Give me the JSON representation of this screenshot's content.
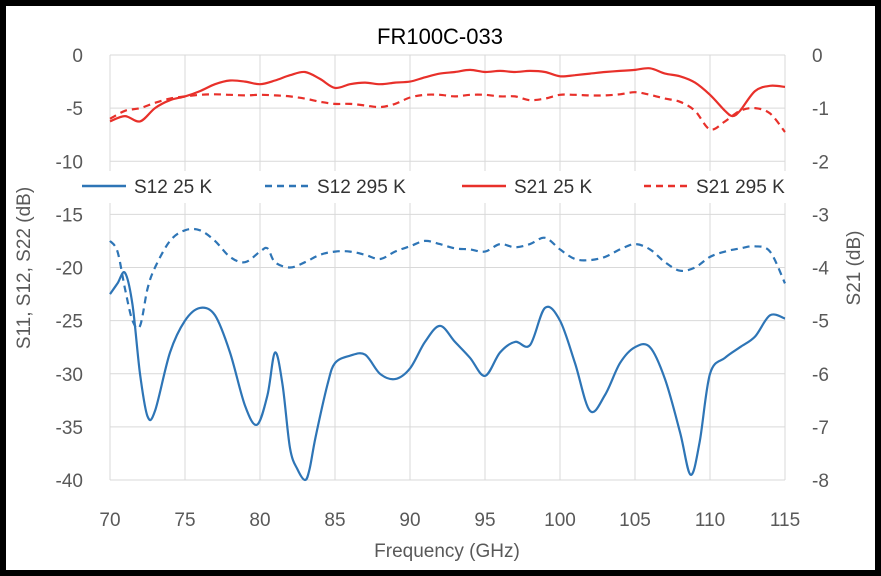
{
  "chart_data": {
    "type": "line",
    "title": "FR100C-033",
    "xlabel": "Frequency (GHz)",
    "ylabel_left": "S11, S12, S22 (dB)",
    "ylabel_right": "S21 (dB)",
    "xlim": [
      70,
      115
    ],
    "ylim_left": [
      -40,
      0
    ],
    "ylim_right": [
      -8,
      0
    ],
    "x_ticks": [
      "70",
      "75",
      "80",
      "85",
      "90",
      "95",
      "100",
      "105",
      "110",
      "115"
    ],
    "y_ticks_left": [
      "0",
      "-5",
      "-10",
      "-15",
      "-20",
      "-25",
      "-30",
      "-35",
      "-40"
    ],
    "y_ticks_right": [
      "0",
      "-1",
      "-2",
      "-3",
      "-4",
      "-5",
      "-6",
      "-7",
      "-8"
    ],
    "grid": true,
    "legend": "inside, upper-middle",
    "series": [
      {
        "name": "S12 25 K",
        "axis": "left",
        "color": "#2E75B6",
        "dash": "solid",
        "x": [
          70,
          70.5,
          71,
          71.5,
          72,
          72.5,
          73,
          74,
          75,
          76,
          77,
          78,
          79,
          79.8,
          80.5,
          81,
          81.5,
          82,
          82.5,
          83,
          83.3,
          83.7,
          84.5,
          85,
          86,
          87,
          88,
          89,
          90,
          91,
          92,
          93,
          94,
          95,
          96,
          97,
          98,
          99,
          100,
          101,
          102,
          103,
          104,
          105,
          106,
          107,
          108,
          108.7,
          109.3,
          110,
          111,
          112,
          113,
          114,
          115
        ],
        "y": [
          -22.5,
          -21.5,
          -20.5,
          -23.5,
          -30,
          -34,
          -33.5,
          -28,
          -25,
          -23.8,
          -24.5,
          -28,
          -33,
          -34.8,
          -32,
          -28,
          -31,
          -37,
          -39,
          -40,
          -39,
          -36,
          -31,
          -29,
          -28.3,
          -28.2,
          -30,
          -30.5,
          -29.5,
          -27,
          -25.5,
          -27,
          -28.5,
          -30.2,
          -28,
          -27,
          -27.3,
          -23.8,
          -25,
          -29,
          -33.5,
          -32,
          -29,
          -27.5,
          -27.5,
          -30.5,
          -35.5,
          -39.5,
          -36.5,
          -30,
          -28.5,
          -27.5,
          -26.5,
          -24.5,
          -24.8
        ]
      },
      {
        "name": "S12 295 K",
        "axis": "left",
        "color": "#2E75B6",
        "dash": "dashed",
        "x": [
          70,
          70.5,
          71,
          71.5,
          72,
          72.5,
          73,
          74,
          75,
          76,
          77,
          78,
          79,
          80,
          80.5,
          81,
          82,
          83,
          84,
          85,
          86,
          87,
          88,
          89,
          90,
          91,
          92,
          93,
          94,
          95,
          96,
          97,
          98,
          99,
          100,
          101,
          102,
          103,
          104,
          105,
          106,
          107,
          108,
          109,
          110,
          111,
          112,
          113,
          114,
          115
        ],
        "y": [
          -17.5,
          -18.5,
          -22,
          -25,
          -25.5,
          -22,
          -20,
          -17.5,
          -16.5,
          -16.5,
          -17.5,
          -19,
          -19.5,
          -18.5,
          -18.2,
          -19.5,
          -20,
          -19.5,
          -18.8,
          -18.5,
          -18.5,
          -18.8,
          -19.2,
          -18.5,
          -18,
          -17.5,
          -17.8,
          -18.2,
          -18.3,
          -18.5,
          -17.8,
          -18.1,
          -17.8,
          -17.2,
          -18.3,
          -19.2,
          -19.3,
          -19,
          -18.3,
          -17.8,
          -18.3,
          -19.5,
          -20.3,
          -20,
          -19,
          -18.5,
          -18.2,
          -18,
          -18.5,
          -21.5
        ]
      },
      {
        "name": "S21 25 K",
        "axis": "right",
        "color": "#E8302A",
        "dash": "solid",
        "x": [
          70,
          71,
          72,
          73,
          74,
          75,
          76,
          77,
          78,
          79,
          80,
          81,
          82,
          83,
          84,
          85,
          86,
          87,
          88,
          89,
          90,
          91,
          92,
          93,
          94,
          95,
          96,
          97,
          98,
          99,
          100,
          101,
          102,
          103,
          104,
          105,
          106,
          107,
          108,
          109,
          110,
          111,
          111.5,
          112,
          113,
          114,
          115
        ],
        "y": [
          -1.25,
          -1.15,
          -1.25,
          -1.0,
          -0.85,
          -0.78,
          -0.68,
          -0.55,
          -0.48,
          -0.5,
          -0.55,
          -0.48,
          -0.38,
          -0.32,
          -0.45,
          -0.62,
          -0.55,
          -0.52,
          -0.55,
          -0.52,
          -0.5,
          -0.42,
          -0.35,
          -0.32,
          -0.28,
          -0.32,
          -0.3,
          -0.32,
          -0.3,
          -0.32,
          -0.4,
          -0.38,
          -0.35,
          -0.32,
          -0.3,
          -0.28,
          -0.25,
          -0.35,
          -0.4,
          -0.52,
          -0.75,
          -1.05,
          -1.15,
          -1.05,
          -0.68,
          -0.58,
          -0.6
        ]
      },
      {
        "name": "S21 295 K",
        "axis": "right",
        "color": "#E8302A",
        "dash": "dashed",
        "x": [
          70,
          71,
          72,
          73,
          74,
          75,
          76,
          77,
          78,
          79,
          80,
          81,
          82,
          83,
          84,
          85,
          86,
          87,
          88,
          89,
          90,
          91,
          92,
          93,
          94,
          95,
          96,
          97,
          98,
          99,
          100,
          101,
          102,
          103,
          104,
          105,
          106,
          107,
          108,
          109,
          110,
          111,
          112,
          113,
          114,
          115
        ],
        "y": [
          -1.2,
          -1.05,
          -1.0,
          -0.9,
          -0.82,
          -0.78,
          -0.75,
          -0.74,
          -0.75,
          -0.76,
          -0.75,
          -0.76,
          -0.78,
          -0.82,
          -0.88,
          -0.92,
          -0.92,
          -0.95,
          -0.98,
          -0.92,
          -0.8,
          -0.75,
          -0.75,
          -0.78,
          -0.75,
          -0.75,
          -0.78,
          -0.78,
          -0.85,
          -0.82,
          -0.75,
          -0.75,
          -0.76,
          -0.76,
          -0.74,
          -0.7,
          -0.75,
          -0.82,
          -0.88,
          -1.05,
          -1.4,
          -1.25,
          -1.05,
          -1.0,
          -1.1,
          -1.45
        ]
      }
    ]
  }
}
